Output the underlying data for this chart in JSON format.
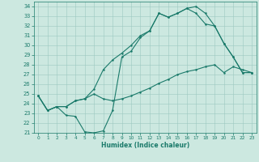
{
  "title": "",
  "xlabel": "Humidex (Indice chaleur)",
  "background_color": "#cce8e0",
  "grid_color": "#9dc8c0",
  "line_color": "#1a7a6a",
  "xlim": [
    -0.5,
    23.5
  ],
  "ylim": [
    21,
    34.5
  ],
  "xticks": [
    0,
    1,
    2,
    3,
    4,
    5,
    6,
    7,
    8,
    9,
    10,
    11,
    12,
    13,
    14,
    15,
    16,
    17,
    18,
    19,
    20,
    21,
    22,
    23
  ],
  "yticks": [
    21,
    22,
    23,
    24,
    25,
    26,
    27,
    28,
    29,
    30,
    31,
    32,
    33,
    34
  ],
  "curve1_x": [
    0,
    1,
    2,
    3,
    4,
    5,
    6,
    7,
    8,
    9,
    10,
    11,
    12,
    13,
    14,
    15,
    16,
    17,
    18,
    19,
    20,
    21,
    22,
    23
  ],
  "curve1_y": [
    24.8,
    23.3,
    23.7,
    22.8,
    22.7,
    21.1,
    21.0,
    21.2,
    23.3,
    28.8,
    29.4,
    30.8,
    31.5,
    33.3,
    32.9,
    33.3,
    33.8,
    33.3,
    32.2,
    32.0,
    30.2,
    28.8,
    27.2,
    27.2
  ],
  "curve2_x": [
    0,
    1,
    2,
    3,
    4,
    5,
    6,
    7,
    8,
    9,
    10,
    11,
    12,
    13,
    14,
    15,
    16,
    17,
    18,
    19,
    20,
    21,
    22,
    23
  ],
  "curve2_y": [
    24.8,
    23.3,
    23.7,
    23.7,
    24.3,
    24.5,
    25.5,
    27.5,
    28.5,
    29.2,
    30.0,
    31.0,
    31.5,
    33.3,
    32.9,
    33.3,
    33.8,
    34.0,
    33.3,
    32.0,
    30.2,
    28.8,
    27.2,
    27.2
  ],
  "curve3_x": [
    0,
    1,
    2,
    3,
    4,
    5,
    6,
    7,
    8,
    9,
    10,
    11,
    12,
    13,
    14,
    15,
    16,
    17,
    18,
    19,
    20,
    21,
    22,
    23
  ],
  "curve3_y": [
    24.8,
    23.3,
    23.7,
    23.7,
    24.3,
    24.5,
    25.0,
    24.5,
    24.3,
    24.5,
    24.8,
    25.2,
    25.6,
    26.1,
    26.5,
    27.0,
    27.3,
    27.5,
    27.8,
    28.0,
    27.2,
    27.8,
    27.5,
    27.2
  ]
}
